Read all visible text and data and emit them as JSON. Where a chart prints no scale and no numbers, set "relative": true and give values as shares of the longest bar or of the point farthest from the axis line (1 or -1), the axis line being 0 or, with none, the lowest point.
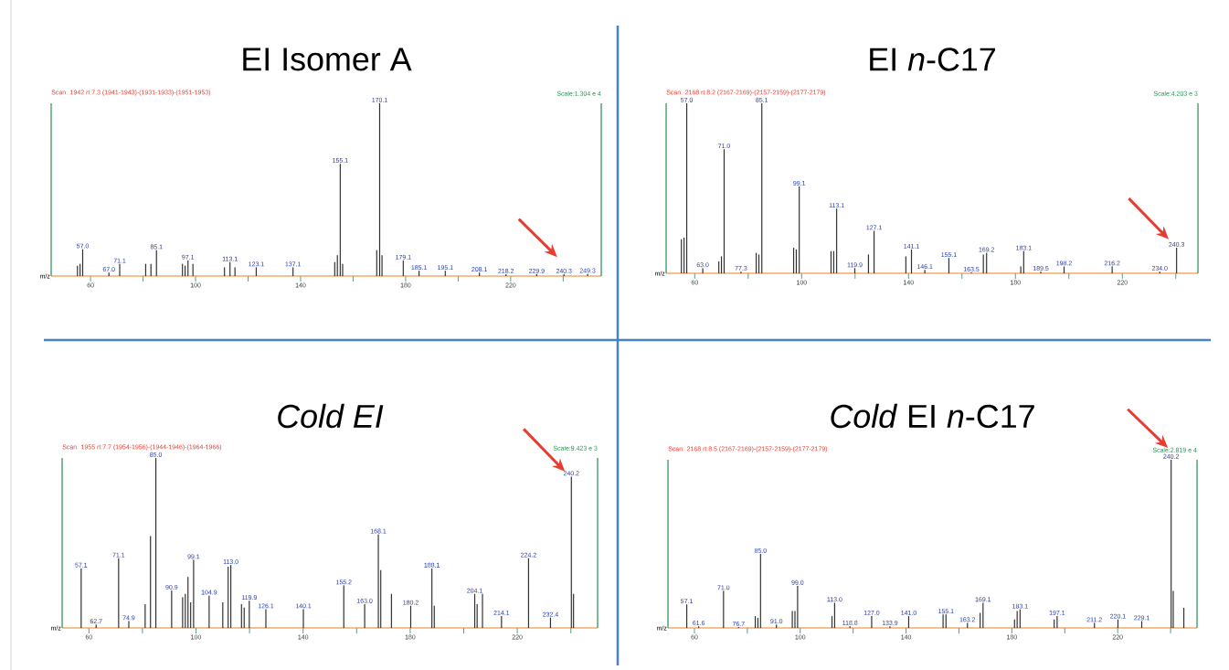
{
  "chart_data": [
    {
      "type": "bar",
      "title": "EI Isomer A",
      "xlabel": "m/z",
      "relative": true,
      "color": "#303030",
      "xlim": [
        45,
        254.5
      ],
      "xticks": [
        60,
        {
          "value": 80,
          "label": null
        },
        100,
        {
          "value": 120,
          "label": null
        },
        140,
        {
          "value": 160,
          "label": null
        },
        180,
        {
          "value": 200,
          "label": null
        },
        220,
        {
          "value": 240,
          "label": null
        }
      ],
      "x": [
        55,
        56,
        57.0,
        67.0,
        71.1,
        81,
        83,
        85.1,
        95,
        96,
        97.1,
        99,
        111,
        113.1,
        115,
        123.1,
        137.1,
        153,
        154,
        155.1,
        156,
        169,
        170.1,
        171,
        179.1,
        185.1,
        195.1,
        208.1,
        218.2,
        229.9,
        240.3,
        249.3
      ],
      "values": [
        0.06,
        0.07,
        0.155,
        0.02,
        0.07,
        0.07,
        0.07,
        0.15,
        0.07,
        0.06,
        0.09,
        0.07,
        0.05,
        0.08,
        0.05,
        0.05,
        0.05,
        0.08,
        0.12,
        0.65,
        0.07,
        0.15,
        1,
        0.12,
        0.09,
        0.03,
        0.03,
        0.02,
        0.01,
        0.01,
        0.01,
        0.012
      ],
      "annotations": [
        "Scan: 1942  rt:7.3 (1941-1943)-(1931-1933)-(1951-1953)",
        "Scale:1.304 e 4",
        {
          "text": "57.0",
          "x": 57.0,
          "y": 0.155
        },
        {
          "text": "67.0",
          "x": 67.0,
          "y": 0.02
        },
        {
          "text": "71.1",
          "x": 71.1,
          "y": 0.07
        },
        {
          "text": "85.1",
          "x": 85.1,
          "y": 0.15
        },
        {
          "text": "97.1",
          "x": 97.1,
          "y": 0.09
        },
        {
          "text": "113.1",
          "x": 113.1,
          "y": 0.08
        },
        {
          "text": "123.1",
          "x": 123.1,
          "y": 0.05
        },
        {
          "text": "137.1",
          "x": 137.1,
          "y": 0.05
        },
        {
          "text": "155.1",
          "x": 155.1,
          "y": 0.65
        },
        {
          "text": "170.1",
          "x": 170.1,
          "y": 1
        },
        {
          "text": "179.1",
          "x": 179.1,
          "y": 0.09
        },
        {
          "text": "185.1",
          "x": 185.1,
          "y": 0.03
        },
        {
          "text": "195.1",
          "x": 195.1,
          "y": 0.03
        },
        {
          "text": "208.1",
          "x": 208.1,
          "y": 0.02
        },
        {
          "text": "218.2",
          "x": 218.2,
          "y": 0.01
        },
        {
          "text": "229.9",
          "x": 229.9,
          "y": 0.01
        },
        {
          "text": "240.3",
          "x": 240.3,
          "y": 0.01
        },
        {
          "text": "249.3",
          "x": 249.3,
          "y": 0.012
        }
      ]
    },
    {
      "type": "bar",
      "title": "EI *n*-C17",
      "xlabel": "m/z",
      "relative": true,
      "color": "#303030",
      "xlim": [
        49.3,
        248.3
      ],
      "xticks": [
        60,
        {
          "value": 80,
          "label": null
        },
        100,
        {
          "value": 120,
          "label": null
        },
        140,
        {
          "value": 160,
          "label": null
        },
        180,
        {
          "value": 200,
          "label": null
        },
        220,
        {
          "value": 240,
          "label": null
        }
      ],
      "x": [
        55,
        56,
        57.0,
        63.0,
        69,
        70,
        71.0,
        77.3,
        83,
        84,
        85.1,
        97,
        98,
        99.1,
        111,
        112,
        113.1,
        119.9,
        125,
        127.1,
        139,
        141.1,
        146.1,
        155.1,
        163.5,
        168,
        169.2,
        182,
        183.1,
        189.5,
        198.2,
        216.2,
        234.0,
        240.3
      ],
      "values": [
        0.2,
        0.21,
        1,
        0.03,
        0.07,
        0.1,
        0.73,
        0.01,
        0.12,
        0.11,
        1,
        0.15,
        0.14,
        0.51,
        0.13,
        0.13,
        0.38,
        0.03,
        0.11,
        0.25,
        0.1,
        0.14,
        0.02,
        0.09,
        0.005,
        0.11,
        0.12,
        0.04,
        0.13,
        0.01,
        0.04,
        0.04,
        0.01,
        0.15
      ],
      "annotations": [
        "Scan: 2168  rt:8.2 (2167-2169)-(2157-2159)-(2177-2179)",
        "Scale:4.203 e 3",
        {
          "text": "57.0",
          "x": 57.0,
          "y": 1
        },
        {
          "text": "63.0",
          "x": 63.0,
          "y": 0.03
        },
        {
          "text": "71.0",
          "x": 71.0,
          "y": 0.73
        },
        {
          "text": "77.3",
          "x": 77.3,
          "y": 0.01
        },
        {
          "text": "85.1",
          "x": 85.1,
          "y": 1
        },
        {
          "text": "99.1",
          "x": 99.1,
          "y": 0.51
        },
        {
          "text": "113.1",
          "x": 113.1,
          "y": 0.38
        },
        {
          "text": "119.9",
          "x": 119.9,
          "y": 0.03
        },
        {
          "text": "127.1",
          "x": 127.1,
          "y": 0.25
        },
        {
          "text": "141.1",
          "x": 141.1,
          "y": 0.14
        },
        {
          "text": "146.1",
          "x": 146.1,
          "y": 0.02
        },
        {
          "text": "155.1",
          "x": 155.1,
          "y": 0.09
        },
        {
          "text": "163.5",
          "x": 163.5,
          "y": 0.005
        },
        {
          "text": "169.2",
          "x": 169.2,
          "y": 0.12
        },
        {
          "text": "183.1",
          "x": 183.1,
          "y": 0.13
        },
        {
          "text": "189.5",
          "x": 189.5,
          "y": 0.01
        },
        {
          "text": "198.2",
          "x": 198.2,
          "y": 0.04
        },
        {
          "text": "216.2",
          "x": 216.2,
          "y": 0.04
        },
        {
          "text": "234.0",
          "x": 234.0,
          "y": 0.01
        },
        {
          "text": "240.3",
          "x": 240.3,
          "y": 0.15
        }
      ]
    },
    {
      "type": "bar",
      "title": "*Cold EI*",
      "xlabel": "m/z",
      "relative": true,
      "color": "#303030",
      "xlim": [
        50,
        250
      ],
      "xticks": [
        60,
        {
          "value": 80,
          "label": null
        },
        100,
        {
          "value": 120,
          "label": null
        },
        140,
        {
          "value": 160,
          "label": null
        },
        180,
        {
          "value": 200,
          "label": null
        },
        220,
        {
          "value": 240,
          "label": null
        }
      ],
      "x": [
        57.1,
        62.7,
        71.1,
        74.9,
        81,
        83,
        85.0,
        90.9,
        95,
        96,
        97,
        98,
        99.1,
        104.9,
        110,
        112,
        113.0,
        117,
        118,
        119.9,
        126.1,
        140.1,
        155.2,
        163.0,
        168.1,
        169,
        173,
        180.2,
        188.1,
        189,
        204.1,
        205,
        207,
        214.1,
        224.2,
        232.4,
        240.2,
        241
      ],
      "values": [
        0.35,
        0.02,
        0.41,
        0.04,
        0.14,
        0.54,
        1,
        0.22,
        0.18,
        0.2,
        0.3,
        0.15,
        0.4,
        0.19,
        0.15,
        0.36,
        0.37,
        0.14,
        0.12,
        0.16,
        0.11,
        0.11,
        0.25,
        0.14,
        0.55,
        0.34,
        0.2,
        0.13,
        0.35,
        0.13,
        0.2,
        0.14,
        0.2,
        0.07,
        0.41,
        0.06,
        0.89,
        0.2
      ],
      "annotations": [
        "Scan: 1955  rt:7.7 (1954-1956)-(1944-1946)-(1964-1966)",
        "Scale:9.423 e 3",
        {
          "text": "57.1",
          "x": 57.1,
          "y": 0.35
        },
        {
          "text": "62.7",
          "x": 62.7,
          "y": 0.02
        },
        {
          "text": "71.1",
          "x": 71.1,
          "y": 0.41
        },
        {
          "text": "74.9",
          "x": 74.9,
          "y": 0.04
        },
        {
          "text": "85.0",
          "x": 85.0,
          "y": 1
        },
        {
          "text": "90.9",
          "x": 90.9,
          "y": 0.22
        },
        {
          "text": "99.1",
          "x": 99.1,
          "y": 0.4
        },
        {
          "text": "104.9",
          "x": 104.9,
          "y": 0.19
        },
        {
          "text": "113.0",
          "x": 113.0,
          "y": 0.37
        },
        {
          "text": "119.9",
          "x": 119.9,
          "y": 0.16
        },
        {
          "text": "126.1",
          "x": 126.1,
          "y": 0.11
        },
        {
          "text": "140.1",
          "x": 140.1,
          "y": 0.11
        },
        {
          "text": "155.2",
          "x": 155.2,
          "y": 0.25
        },
        {
          "text": "163.0",
          "x": 163.0,
          "y": 0.14
        },
        {
          "text": "168.1",
          "x": 168.1,
          "y": 0.55
        },
        {
          "text": "180.2",
          "x": 180.2,
          "y": 0.13
        },
        {
          "text": "188.1",
          "x": 188.1,
          "y": 0.35
        },
        {
          "text": "204.1",
          "x": 204.1,
          "y": 0.2
        },
        {
          "text": "214.1",
          "x": 214.1,
          "y": 0.07
        },
        {
          "text": "224.2",
          "x": 224.2,
          "y": 0.41
        },
        {
          "text": "232.4",
          "x": 232.4,
          "y": 0.06
        },
        {
          "text": "240.2",
          "x": 240.2,
          "y": 0.89
        }
      ]
    },
    {
      "type": "bar",
      "title": "*Cold* EI *n*-C17",
      "xlabel": "m/z",
      "relative": true,
      "color": "#303030",
      "xlim": [
        50,
        250
      ],
      "xticks": [
        60,
        {
          "value": 80,
          "label": null
        },
        100,
        {
          "value": 120,
          "label": null
        },
        140,
        {
          "value": 160,
          "label": null
        },
        180,
        {
          "value": 200,
          "label": null
        },
        220,
        {
          "value": 240,
          "label": null
        }
      ],
      "x": [
        57.1,
        61.6,
        71.0,
        76.7,
        83,
        84,
        85.0,
        91.0,
        97,
        98,
        99.0,
        112,
        113.0,
        118.8,
        127.0,
        133.9,
        141.0,
        154,
        155.1,
        163.2,
        168,
        169.1,
        181,
        182,
        183.1,
        196,
        197.1,
        211.2,
        220.1,
        229.1,
        240.2,
        241,
        245
      ],
      "values": [
        0.14,
        0.01,
        0.22,
        0.005,
        0.07,
        0.06,
        0.44,
        0.02,
        0.1,
        0.1,
        0.25,
        0.07,
        0.15,
        0.01,
        0.07,
        0.01,
        0.07,
        0.08,
        0.08,
        0.03,
        0.09,
        0.15,
        0.05,
        0.1,
        0.11,
        0.05,
        0.07,
        0.03,
        0.05,
        0.04,
        1,
        0.22,
        0.12
      ],
      "annotations": [
        "Scan: 2168  rt:8.5 (2167-2169)-(2157-2159)-(2177-2179)",
        "Scale:2.819 e 4",
        {
          "text": "57.1",
          "x": 57.1,
          "y": 0.14
        },
        {
          "text": "61.6",
          "x": 61.6,
          "y": 0.01
        },
        {
          "text": "71.0",
          "x": 71.0,
          "y": 0.22
        },
        {
          "text": "76.7",
          "x": 76.7,
          "y": 0.005
        },
        {
          "text": "85.0",
          "x": 85.0,
          "y": 0.44
        },
        {
          "text": "91.0",
          "x": 91.0,
          "y": 0.02
        },
        {
          "text": "99.0",
          "x": 99.0,
          "y": 0.25
        },
        {
          "text": "113.0",
          "x": 113.0,
          "y": 0.15
        },
        {
          "text": "118.8",
          "x": 118.8,
          "y": 0.01
        },
        {
          "text": "127.0",
          "x": 127.0,
          "y": 0.07
        },
        {
          "text": "133.9",
          "x": 133.9,
          "y": 0.01
        },
        {
          "text": "141.0",
          "x": 141.0,
          "y": 0.07
        },
        {
          "text": "155.1",
          "x": 155.1,
          "y": 0.08
        },
        {
          "text": "163.2",
          "x": 163.2,
          "y": 0.03
        },
        {
          "text": "169.1",
          "x": 169.1,
          "y": 0.15
        },
        {
          "text": "183.1",
          "x": 183.1,
          "y": 0.11
        },
        {
          "text": "197.1",
          "x": 197.1,
          "y": 0.07
        },
        {
          "text": "211.2",
          "x": 211.2,
          "y": 0.03
        },
        {
          "text": "220.1",
          "x": 220.1,
          "y": 0.05
        },
        {
          "text": "229.1",
          "x": 229.1,
          "y": 0.04
        },
        {
          "text": "240.2",
          "x": 240.2,
          "y": 1
        }
      ]
    }
  ]
}
